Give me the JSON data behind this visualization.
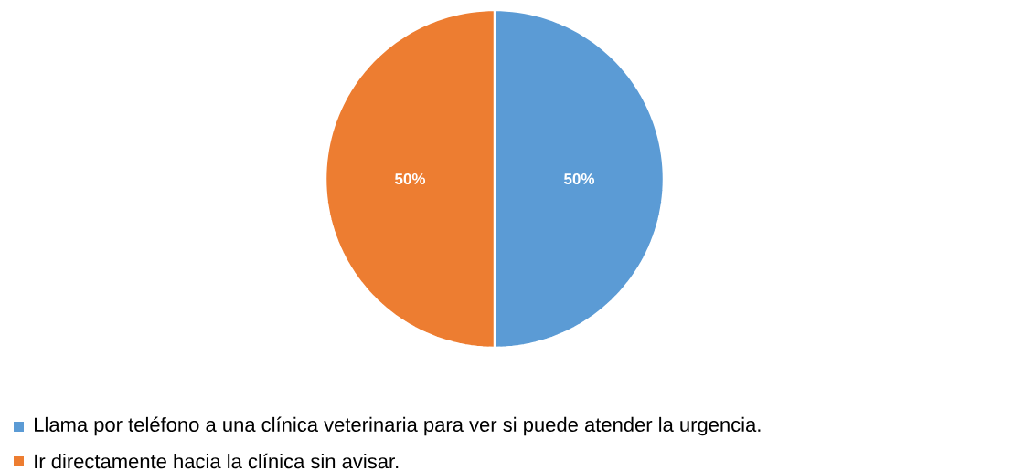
{
  "chart_data": {
    "type": "pie",
    "categories": [
      "Llama por teléfono a una clínica veterinaria para ver si puede atender la urgencia.",
      "Ir directamente hacia la clínica sin avisar."
    ],
    "values": [
      50,
      50
    ],
    "colors": [
      "#5b9bd5",
      "#ed7d31"
    ],
    "value_labels": [
      "50%",
      "50%"
    ],
    "legend": "bottom"
  }
}
